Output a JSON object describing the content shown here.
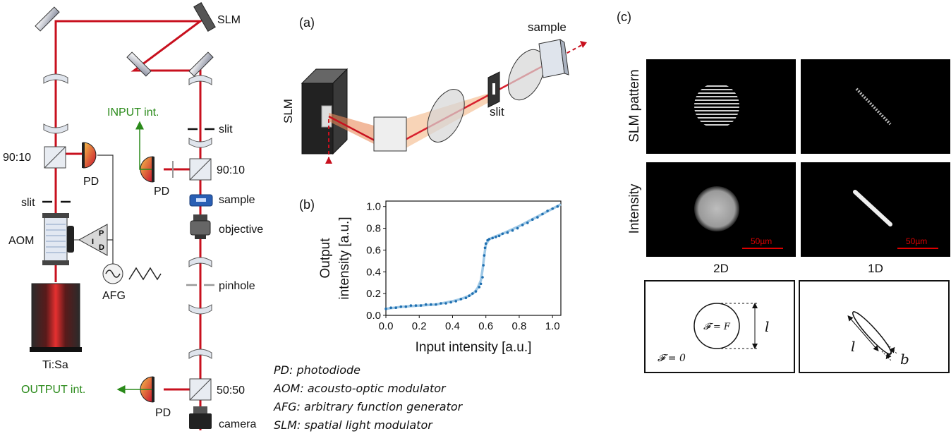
{
  "setup": {
    "slm": "SLM",
    "input_label": "INPUT int.",
    "output_label": "OUTPUT int.",
    "slit_left": "slit",
    "slit_right": "slit",
    "bs_left": "90:10",
    "bs_right": "90:10",
    "bs_bottom": "50:50",
    "pd_left": "PD",
    "pd_mid": "PD",
    "pd_bottom": "PD",
    "aom": "AOM",
    "pid_p": "P",
    "pid_i": "I",
    "pid_d": "D",
    "afg": "AFG",
    "laser": "Ti:Sa",
    "sample": "sample",
    "objective": "objective",
    "pinhole": "pinhole",
    "camera": "camera"
  },
  "legend": [
    "PD: photodiode",
    "AOM: acousto-optic modulator",
    "AFG: arbitrary function generator",
    "SLM: spatial light modulator"
  ],
  "panel_a": {
    "tag": "(a)",
    "slm": "SLM",
    "slit": "slit",
    "sample": "sample"
  },
  "panel_b": {
    "tag": "(b)"
  },
  "panel_c": {
    "tag": "(c)",
    "row1": "SLM pattern",
    "row2": "Intensity",
    "col1": "2D",
    "col2": "1D",
    "scalebar": "50µm",
    "F_eq": "𝓕 = F",
    "F_zero": "𝓕 = 0",
    "l": "l",
    "b": "b"
  },
  "chart_data": {
    "type": "scatter",
    "xlabel": "Input intensity [a.u.]",
    "ylabel": "Output intensity [a.u.]",
    "xlim": [
      0.0,
      1.05
    ],
    "ylim": [
      0.0,
      1.05
    ],
    "xticks": [
      "0.0",
      "0.2",
      "0.4",
      "0.6",
      "0.8",
      "1.0"
    ],
    "yticks": [
      "0.0",
      "0.2",
      "0.4",
      "0.6",
      "0.8",
      "1.0"
    ],
    "colors": {
      "points": "#1f6fb0",
      "fit": "#9ec8e6"
    },
    "fit": {
      "x": [
        0.0,
        0.1,
        0.2,
        0.3,
        0.4,
        0.45,
        0.5,
        0.53,
        0.55,
        0.57,
        0.58,
        0.59,
        0.6,
        0.62,
        0.65,
        0.7,
        0.8,
        0.9,
        1.0,
        1.05
      ],
      "y": [
        0.06,
        0.08,
        0.09,
        0.1,
        0.13,
        0.15,
        0.18,
        0.21,
        0.25,
        0.32,
        0.42,
        0.55,
        0.65,
        0.7,
        0.72,
        0.75,
        0.82,
        0.9,
        0.98,
        1.02
      ]
    },
    "points": {
      "x": [
        0.0,
        0.03,
        0.06,
        0.09,
        0.12,
        0.15,
        0.18,
        0.21,
        0.24,
        0.27,
        0.3,
        0.33,
        0.36,
        0.39,
        0.42,
        0.45,
        0.48,
        0.5,
        0.52,
        0.54,
        0.56,
        0.57,
        0.58,
        0.585,
        0.59,
        0.595,
        0.6,
        0.61,
        0.62,
        0.64,
        0.66,
        0.68,
        0.7,
        0.73,
        0.76,
        0.79,
        0.82,
        0.85,
        0.88,
        0.91,
        0.94,
        0.97,
        1.0,
        1.03
      ],
      "y": [
        0.06,
        0.07,
        0.07,
        0.08,
        0.08,
        0.09,
        0.09,
        0.09,
        0.1,
        0.1,
        0.1,
        0.11,
        0.11,
        0.12,
        0.13,
        0.15,
        0.16,
        0.18,
        0.2,
        0.22,
        0.26,
        0.29,
        0.35,
        0.46,
        0.55,
        0.62,
        0.66,
        0.69,
        0.7,
        0.71,
        0.72,
        0.73,
        0.75,
        0.76,
        0.78,
        0.8,
        0.83,
        0.85,
        0.88,
        0.9,
        0.93,
        0.96,
        0.98,
        1.0
      ]
    }
  }
}
